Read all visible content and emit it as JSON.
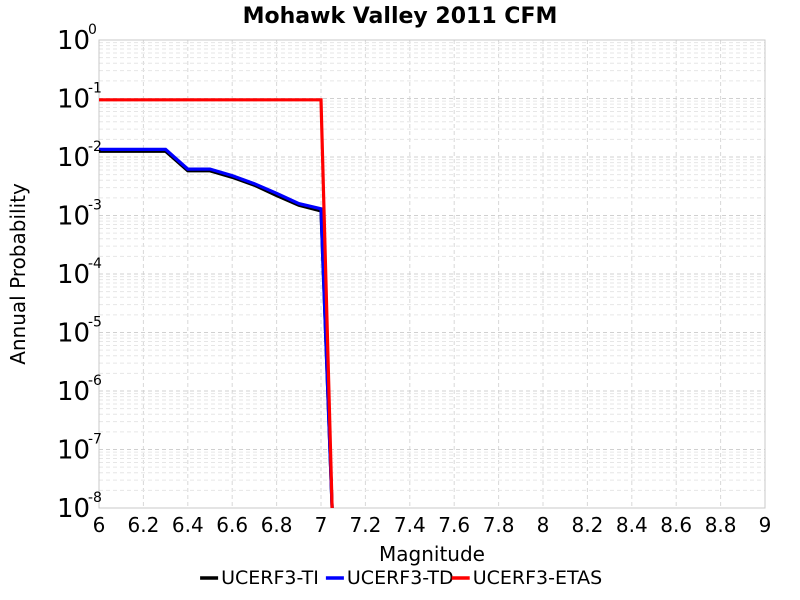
{
  "chart_data": {
    "type": "line",
    "title": "Mohawk Valley 2011 CFM",
    "xlabel": "Magnitude",
    "ylabel": "Annual Probability",
    "xlim": [
      6,
      9
    ],
    "ylim": [
      1e-08,
      1
    ],
    "y_scale": "log",
    "grid": true,
    "legend_position": "bottom",
    "x_ticks": [
      "6",
      "6.2",
      "6.4",
      "6.6",
      "6.8",
      "7",
      "7.2",
      "7.4",
      "7.6",
      "7.8",
      "8",
      "8.2",
      "8.4",
      "8.6",
      "8.8",
      "9"
    ],
    "y_tick_base": "10",
    "y_tick_exponents": [
      "0",
      "-1",
      "-2",
      "-3",
      "-4",
      "-5",
      "-6",
      "-7",
      "-8"
    ],
    "series": [
      {
        "name": "UCERF3-TI",
        "color": "#000000",
        "x": [
          6.0,
          6.1,
          6.2,
          6.3,
          6.4,
          6.5,
          6.6,
          6.7,
          6.8,
          6.9,
          7.0,
          7.05
        ],
        "y": [
          0.0125,
          0.0125,
          0.0125,
          0.0125,
          0.0058,
          0.0058,
          0.0045,
          0.0033,
          0.0022,
          0.0015,
          0.0012,
          1e-08
        ]
      },
      {
        "name": "UCERF3-TD",
        "color": "#0000ff",
        "x": [
          6.0,
          6.1,
          6.2,
          6.3,
          6.4,
          6.5,
          6.6,
          6.7,
          6.8,
          6.9,
          7.0,
          7.05
        ],
        "y": [
          0.0135,
          0.0135,
          0.0135,
          0.0135,
          0.0062,
          0.0062,
          0.0048,
          0.0035,
          0.0024,
          0.0016,
          0.0013,
          1e-08
        ]
      },
      {
        "name": "UCERF3-ETAS",
        "color": "#ff0000",
        "x": [
          6.0,
          6.5,
          7.0,
          7.05
        ],
        "y": [
          0.095,
          0.095,
          0.095,
          1e-08
        ]
      }
    ]
  }
}
